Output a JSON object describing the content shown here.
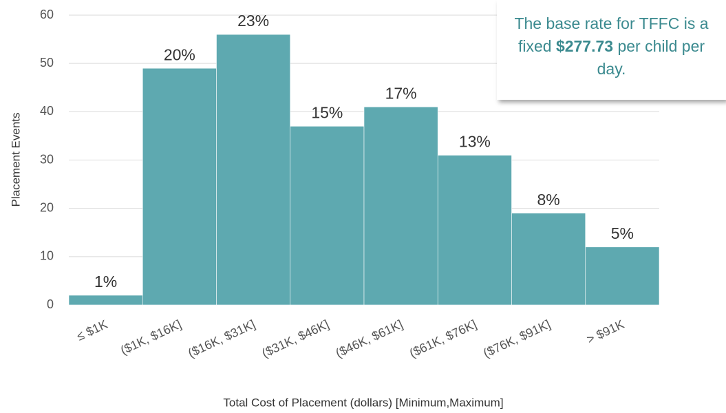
{
  "chart_data": {
    "type": "bar",
    "categories": [
      "≤ $1K",
      "($1K, $16K]",
      "($16K, $31K]",
      "($31K, $46K]",
      "($46K, $61K]",
      "($61K, $76K]",
      "($76K, $91K]",
      "> $91K"
    ],
    "values": [
      2,
      49,
      56,
      37,
      41,
      31,
      19,
      12
    ],
    "value_labels": [
      "1%",
      "20%",
      "23%",
      "15%",
      "17%",
      "13%",
      "8%",
      "5%"
    ],
    "color": "#5ea9b0",
    "x_label": "Total Cost of Placement (dollars) [Minimum,Maximum]",
    "y_label": "Placement Events",
    "ylim": [
      0,
      60
    ],
    "yticks": [
      0,
      10,
      20,
      30,
      40,
      50,
      60
    ],
    "grid": true,
    "annotation": [
      {
        "text": "The base rate for TFFC is a fixed ",
        "bold": false
      },
      {
        "text": "$277.73",
        "bold": true
      },
      {
        "text": " per child per day.",
        "bold": false
      }
    ]
  }
}
